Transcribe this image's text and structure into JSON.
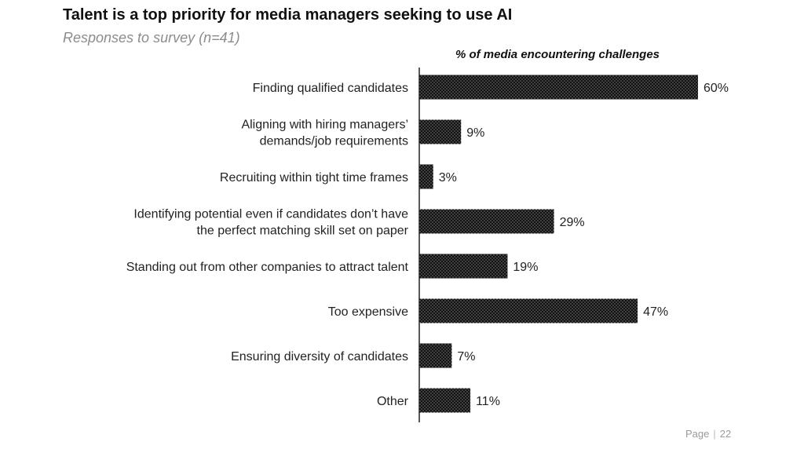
{
  "title": "Talent is a top priority for media managers seeking to use AI",
  "subtitle": "Responses to survey (n=41)",
  "footer": {
    "page_label": "Page",
    "page_number": "22"
  },
  "colors": {
    "bar": "#111111",
    "dots": "#ffffff",
    "axis": "#222222"
  },
  "chart_data": {
    "type": "bar",
    "orientation": "horizontal",
    "title": "% of media encountering challenges",
    "categories": [
      [
        "Finding qualified candidates"
      ],
      [
        "Aligning with hiring managers’",
        "demands/job requirements"
      ],
      [
        "Recruiting within tight time frames"
      ],
      [
        "Identifying potential even if candidates don’t have",
        "the perfect matching skill set on paper"
      ],
      [
        "Standing out from other companies to attract talent"
      ],
      [
        "Too expensive"
      ],
      [
        "Ensuring diversity of candidates"
      ],
      [
        "Other"
      ]
    ],
    "values": [
      60,
      9,
      3,
      29,
      19,
      47,
      7,
      11
    ],
    "value_labels": [
      "60%",
      "9%",
      "3%",
      "29%",
      "19%",
      "47%",
      "7%",
      "11%"
    ],
    "xlim": [
      0,
      60
    ],
    "grid": false,
    "legend": "none"
  }
}
